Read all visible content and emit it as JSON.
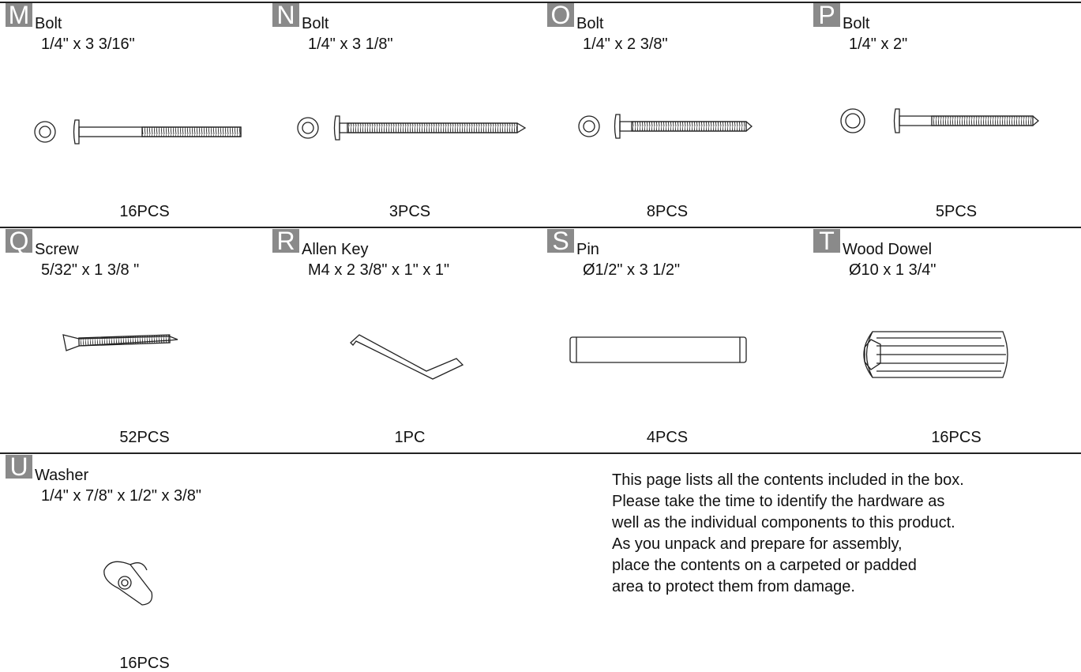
{
  "items": [
    {
      "letter": "M",
      "name": "Bolt",
      "size": "1/4\" x 3 3/16\"",
      "qty": "16PCS"
    },
    {
      "letter": "N",
      "name": "Bolt",
      "size": "1/4\" x 3 1/8\"",
      "qty": "3PCS"
    },
    {
      "letter": "O",
      "name": "Bolt",
      "size": "1/4\" x 2 3/8\"",
      "qty": "8PCS"
    },
    {
      "letter": "P",
      "name": "Bolt",
      "size": "1/4\" x 2\"",
      "qty": "5PCS"
    },
    {
      "letter": "Q",
      "name": "Screw",
      "size": "5/32\" x 1 3/8 \"",
      "qty": "52PCS"
    },
    {
      "letter": "R",
      "name": "Allen Key",
      "size": "M4 x 2 3/8\" x 1\" x 1\"",
      "qty": "1PC"
    },
    {
      "letter": "S",
      "name": "Pin",
      "size": "Ø1/2\" x 3 1/2\"",
      "qty": "4PCS"
    },
    {
      "letter": "T",
      "name": "Wood Dowel",
      "size": "Ø10 x 1 3/4\"",
      "qty": "16PCS"
    },
    {
      "letter": "U",
      "name": "Washer",
      "size": "1/4\" x 7/8\" x 1/2\" x 3/8\"",
      "qty": "16PCS"
    }
  ],
  "note": [
    "This page lists all the contents included in the box.",
    "Please take the time to identify the hardware as",
    "well as the individual components to this product.",
    "As you unpack and prepare for assembly,",
    "place the contents on a carpeted or padded",
    "area to protect them from damage."
  ]
}
